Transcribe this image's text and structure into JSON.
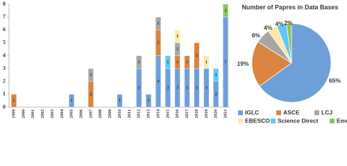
{
  "chart_data": [
    {
      "type": "bar",
      "stacked": true,
      "grid": false,
      "categories": [
        "1999",
        "2000",
        "2001",
        "2002",
        "2003",
        "2004",
        "2005",
        "2006",
        "2007",
        "2008",
        "2009",
        "2010",
        "2011",
        "2012",
        "2013",
        "2014",
        "2015",
        "2016",
        "2017",
        "2018",
        "2019",
        "2020",
        "2021"
      ],
      "ylim": [
        0,
        8
      ],
      "yticks": [
        0,
        1,
        2,
        3,
        4,
        5,
        6,
        7,
        8
      ],
      "series": [
        {
          "name": "IGLC",
          "color": "#6f9fd8",
          "values": [
            null,
            null,
            null,
            null,
            null,
            null,
            1,
            null,
            null,
            null,
            null,
            1,
            null,
            3,
            1,
            4,
            3,
            3,
            3,
            3,
            3,
            2,
            7
          ]
        },
        {
          "name": "ASCE",
          "color": "#d9843f",
          "values": [
            1,
            null,
            null,
            null,
            null,
            null,
            null,
            null,
            2,
            null,
            null,
            null,
            null,
            null,
            null,
            2,
            null,
            1,
            1,
            2,
            null,
            null,
            null
          ]
        },
        {
          "name": "LCJ",
          "color": "#a6a6a6",
          "values": [
            null,
            null,
            null,
            null,
            null,
            null,
            null,
            null,
            1,
            null,
            null,
            null,
            null,
            1,
            null,
            1,
            null,
            1,
            null,
            null,
            null,
            null,
            null
          ]
        },
        {
          "name": "EBESCO",
          "color": "#fde8a6",
          "values": [
            null,
            null,
            null,
            null,
            null,
            null,
            null,
            null,
            null,
            null,
            null,
            null,
            null,
            null,
            null,
            null,
            null,
            1,
            null,
            null,
            1,
            null,
            null
          ]
        },
        {
          "name": "Science Direct",
          "color": "#5fc8f0",
          "values": [
            null,
            null,
            null,
            null,
            null,
            null,
            null,
            null,
            null,
            null,
            null,
            null,
            null,
            null,
            null,
            null,
            1,
            null,
            null,
            null,
            null,
            1,
            null
          ]
        },
        {
          "name": "Emerald",
          "color": "#8cc45c",
          "values": [
            null,
            null,
            null,
            null,
            null,
            null,
            null,
            null,
            null,
            null,
            null,
            null,
            null,
            null,
            null,
            null,
            null,
            null,
            null,
            null,
            null,
            null,
            1
          ]
        }
      ]
    },
    {
      "type": "pie",
      "title": "Number of Papres in Data Bases",
      "values": [
        65,
        19,
        6,
        4,
        4,
        2
      ],
      "value_labels": [
        "65%",
        "19%",
        "6%",
        "4%",
        "4%",
        "2%"
      ]
    }
  ]
}
